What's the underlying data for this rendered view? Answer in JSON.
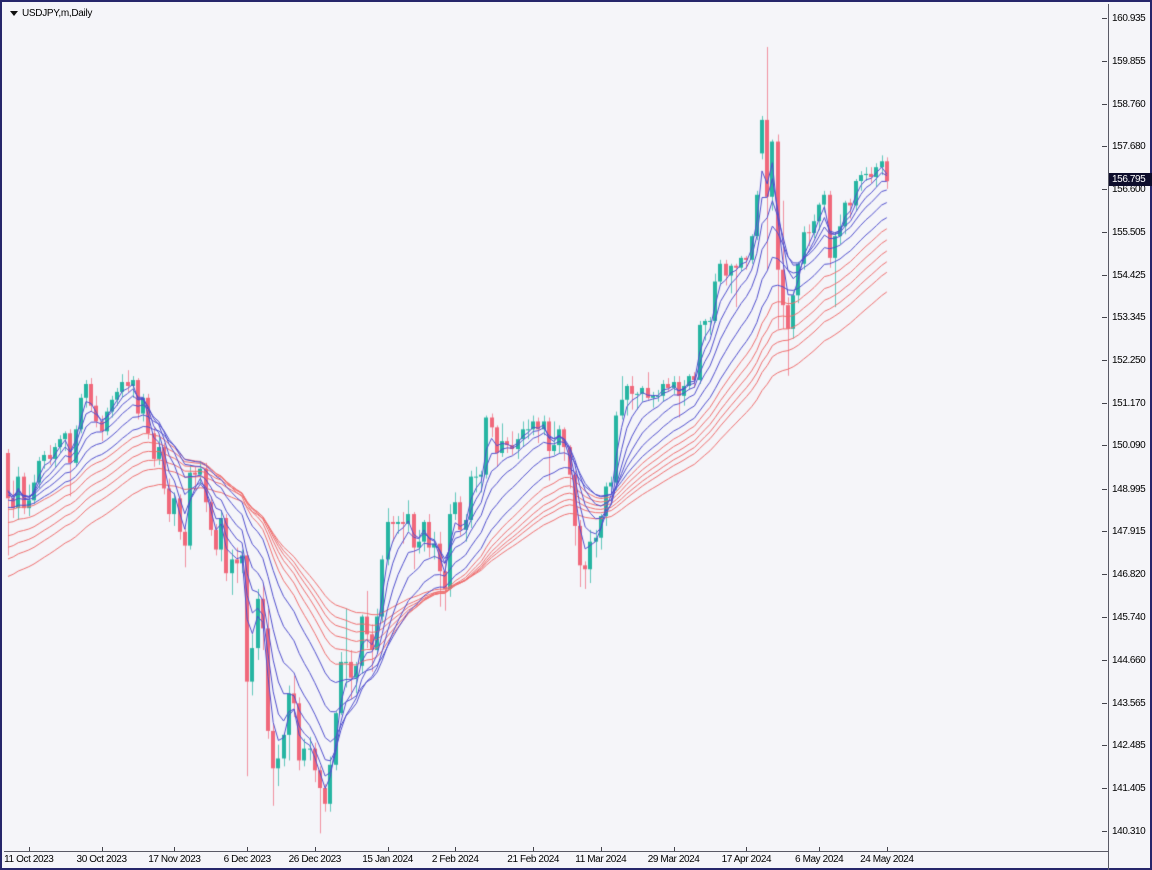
{
  "window": {
    "symbol_label": "USDJPY,m,Daily"
  },
  "price_axis": {
    "labels": [
      "160.935",
      "159.855",
      "158.760",
      "157.680",
      "156.600",
      "155.505",
      "154.425",
      "153.345",
      "152.250",
      "151.170",
      "150.090",
      "148.995",
      "147.915",
      "146.820",
      "145.740",
      "144.660",
      "143.565",
      "142.485",
      "141.405",
      "140.310"
    ],
    "current_price": "156.795"
  },
  "time_axis": {
    "labels": [
      {
        "text": "11 Oct 2023",
        "bar": 4
      },
      {
        "text": "30 Oct 2023",
        "bar": 18
      },
      {
        "text": "17 Nov 2023",
        "bar": 32
      },
      {
        "text": "6 Dec 2023",
        "bar": 46
      },
      {
        "text": "26 Dec 2023",
        "bar": 59
      },
      {
        "text": "15 Jan 2024",
        "bar": 73
      },
      {
        "text": "2 Feb 2024",
        "bar": 86
      },
      {
        "text": "21 Feb 2024",
        "bar": 101
      },
      {
        "text": "11 Mar 2024",
        "bar": 114
      },
      {
        "text": "29 Mar 2024",
        "bar": 128
      },
      {
        "text": "17 Apr 2024",
        "bar": 142
      },
      {
        "text": "6 May 2024",
        "bar": 156
      },
      {
        "text": "24 May 2024",
        "bar": 169
      }
    ]
  },
  "chart_data": {
    "type": "candlestick",
    "title": "USDJPY,m,Daily",
    "ylim": [
      139.8,
      161.3
    ],
    "colors": {
      "up": "#26b5a2",
      "down": "#f0687b",
      "gmma_short": "#4f4ecd",
      "gmma_long": "#ee6e6e",
      "background": "#f5f5f9"
    },
    "candles": [
      [
        149.9,
        150.0,
        147.3,
        148.75
      ],
      [
        148.75,
        149.2,
        148.25,
        148.5
      ],
      [
        148.5,
        149.55,
        148.2,
        149.3
      ],
      [
        149.3,
        149.4,
        148.35,
        148.5
      ],
      [
        148.5,
        149.1,
        148.3,
        148.7
      ],
      [
        148.7,
        149.35,
        148.6,
        149.15
      ],
      [
        149.15,
        149.8,
        149.0,
        149.7
      ],
      [
        149.7,
        149.95,
        149.5,
        149.85
      ],
      [
        149.85,
        150.1,
        149.6,
        149.75
      ],
      [
        149.75,
        150.15,
        149.55,
        150.05
      ],
      [
        150.05,
        150.35,
        149.9,
        150.25
      ],
      [
        150.25,
        150.45,
        149.95,
        150.4
      ],
      [
        150.4,
        150.5,
        148.8,
        149.65
      ],
      [
        149.65,
        150.6,
        149.55,
        150.5
      ],
      [
        150.5,
        151.4,
        150.4,
        151.3
      ],
      [
        151.3,
        151.75,
        151.05,
        151.65
      ],
      [
        151.65,
        151.8,
        150.95,
        151.1
      ],
      [
        151.1,
        151.35,
        150.55,
        150.7
      ],
      [
        150.7,
        150.85,
        150.2,
        150.45
      ],
      [
        150.45,
        151.05,
        150.35,
        150.95
      ],
      [
        150.95,
        151.35,
        150.8,
        151.25
      ],
      [
        151.25,
        151.55,
        151.1,
        151.45
      ],
      [
        151.45,
        151.9,
        151.3,
        151.7
      ],
      [
        151.7,
        152.0,
        151.45,
        151.6
      ],
      [
        151.6,
        151.85,
        151.3,
        151.75
      ],
      [
        151.75,
        151.8,
        150.75,
        150.9
      ],
      [
        150.9,
        151.4,
        150.7,
        151.3
      ],
      [
        151.3,
        151.4,
        150.25,
        150.4
      ],
      [
        150.4,
        150.55,
        149.55,
        149.75
      ],
      [
        149.75,
        150.3,
        149.6,
        150.05
      ],
      [
        150.05,
        150.15,
        148.85,
        149.0
      ],
      [
        149.0,
        149.25,
        148.15,
        148.35
      ],
      [
        148.35,
        148.9,
        148.05,
        148.75
      ],
      [
        148.75,
        148.85,
        147.7,
        147.9
      ],
      [
        147.9,
        148.0,
        147.0,
        147.55
      ],
      [
        147.55,
        149.6,
        147.45,
        149.4
      ],
      [
        149.4,
        149.55,
        148.95,
        149.35
      ],
      [
        149.35,
        149.7,
        149.1,
        149.5
      ],
      [
        149.5,
        149.65,
        148.4,
        148.65
      ],
      [
        148.65,
        148.8,
        147.8,
        147.95
      ],
      [
        147.95,
        148.1,
        147.3,
        147.45
      ],
      [
        147.45,
        148.45,
        147.15,
        148.25
      ],
      [
        148.25,
        148.35,
        146.65,
        146.85
      ],
      [
        146.85,
        147.45,
        146.3,
        147.2
      ],
      [
        147.2,
        147.5,
        146.6,
        147.1
      ],
      [
        147.1,
        147.45,
        146.85,
        147.3
      ],
      [
        147.3,
        147.4,
        141.7,
        144.1
      ],
      [
        144.1,
        145.3,
        143.75,
        144.95
      ],
      [
        144.95,
        146.45,
        144.65,
        146.2
      ],
      [
        146.2,
        146.55,
        144.9,
        145.45
      ],
      [
        145.45,
        145.95,
        142.65,
        142.85
      ],
      [
        142.85,
        143.05,
        140.95,
        141.9
      ],
      [
        141.9,
        142.5,
        141.45,
        142.15
      ],
      [
        142.15,
        142.8,
        141.95,
        142.75
      ],
      [
        142.75,
        144.0,
        142.1,
        143.8
      ],
      [
        143.8,
        144.25,
        143.2,
        143.55
      ],
      [
        143.55,
        143.7,
        141.85,
        142.1
      ],
      [
        142.1,
        142.65,
        141.95,
        142.4
      ],
      [
        142.4,
        142.7,
        142.1,
        142.4
      ],
      [
        142.4,
        142.55,
        141.55,
        141.85
      ],
      [
        141.85,
        141.95,
        140.25,
        141.4
      ],
      [
        141.4,
        141.5,
        140.8,
        141.0
      ],
      [
        141.0,
        142.2,
        140.8,
        141.99
      ],
      [
        141.99,
        143.35,
        141.85,
        143.3
      ],
      [
        143.3,
        144.85,
        143.25,
        144.6
      ],
      [
        144.6,
        145.95,
        143.95,
        144.6
      ],
      [
        144.6,
        144.9,
        143.65,
        144.2
      ],
      [
        144.2,
        144.6,
        143.8,
        144.5
      ],
      [
        144.5,
        145.8,
        144.3,
        145.75
      ],
      [
        145.75,
        146.4,
        144.95,
        145.3
      ],
      [
        145.3,
        145.55,
        144.35,
        144.9
      ],
      [
        144.9,
        145.95,
        144.8,
        145.75
      ],
      [
        145.75,
        147.3,
        145.6,
        147.2
      ],
      [
        147.2,
        148.5,
        147.05,
        148.15
      ],
      [
        148.15,
        148.3,
        147.65,
        148.1
      ],
      [
        148.1,
        148.3,
        147.85,
        148.15
      ],
      [
        148.15,
        148.4,
        147.6,
        148.1
      ],
      [
        148.1,
        148.7,
        147.9,
        148.35
      ],
      [
        148.35,
        148.4,
        146.95,
        147.5
      ],
      [
        147.5,
        147.95,
        147.35,
        147.65
      ],
      [
        147.65,
        148.2,
        147.4,
        148.15
      ],
      [
        148.15,
        148.35,
        147.25,
        147.5
      ],
      [
        147.5,
        147.9,
        147.2,
        147.6
      ],
      [
        147.6,
        147.9,
        146.0,
        146.9
      ],
      [
        146.9,
        147.1,
        145.9,
        146.45
      ],
      [
        146.45,
        148.6,
        146.25,
        148.35
      ],
      [
        148.35,
        148.9,
        148.2,
        148.65
      ],
      [
        148.65,
        148.8,
        147.8,
        147.95
      ],
      [
        147.95,
        148.35,
        147.65,
        148.2
      ],
      [
        148.2,
        149.45,
        148.0,
        149.3
      ],
      [
        149.3,
        149.55,
        148.9,
        149.3
      ],
      [
        149.3,
        149.45,
        148.9,
        149.35
      ],
      [
        149.35,
        150.85,
        149.25,
        150.8
      ],
      [
        150.8,
        150.9,
        150.3,
        150.55
      ],
      [
        150.55,
        150.6,
        149.55,
        149.9
      ],
      [
        149.9,
        150.65,
        149.8,
        150.2
      ],
      [
        150.2,
        150.3,
        149.9,
        150.1
      ],
      [
        150.1,
        150.45,
        149.85,
        150.0
      ],
      [
        150.0,
        150.4,
        149.75,
        150.25
      ],
      [
        150.25,
        150.7,
        150.05,
        150.5
      ],
      [
        150.5,
        150.75,
        150.25,
        150.5
      ],
      [
        150.5,
        150.85,
        150.35,
        150.7
      ],
      [
        150.7,
        150.8,
        150.15,
        150.5
      ],
      [
        150.5,
        150.85,
        150.35,
        150.7
      ],
      [
        150.7,
        150.8,
        149.2,
        149.95
      ],
      [
        149.95,
        150.7,
        149.85,
        150.1
      ],
      [
        150.1,
        150.6,
        149.9,
        150.5
      ],
      [
        150.5,
        150.55,
        149.7,
        150.05
      ],
      [
        150.05,
        150.1,
        149.0,
        149.35
      ],
      [
        149.35,
        149.45,
        147.55,
        148.05
      ],
      [
        148.05,
        148.2,
        146.5,
        147.05
      ],
      [
        147.05,
        147.15,
        146.45,
        146.95
      ],
      [
        146.95,
        147.95,
        146.6,
        147.65
      ],
      [
        147.65,
        147.95,
        147.25,
        147.75
      ],
      [
        147.75,
        148.35,
        147.45,
        148.3
      ],
      [
        148.3,
        149.15,
        148.05,
        149.05
      ],
      [
        149.05,
        149.3,
        148.9,
        149.15
      ],
      [
        149.15,
        150.95,
        148.95,
        150.85
      ],
      [
        150.85,
        151.85,
        150.75,
        151.25
      ],
      [
        151.25,
        151.65,
        150.85,
        151.6
      ],
      [
        151.6,
        151.85,
        151.0,
        151.4
      ],
      [
        151.4,
        151.45,
        151.0,
        151.4
      ],
      [
        151.4,
        151.6,
        151.2,
        151.55
      ],
      [
        151.55,
        151.95,
        151.25,
        151.3
      ],
      [
        151.3,
        151.45,
        151.05,
        151.35
      ],
      [
        151.35,
        151.5,
        151.2,
        151.35
      ],
      [
        151.35,
        151.75,
        151.2,
        151.65
      ],
      [
        151.65,
        151.8,
        151.45,
        151.55
      ],
      [
        151.55,
        151.85,
        151.4,
        151.7
      ],
      [
        151.7,
        151.85,
        150.8,
        151.35
      ],
      [
        151.35,
        151.75,
        151.1,
        151.6
      ],
      [
        151.6,
        151.9,
        151.5,
        151.85
      ],
      [
        151.85,
        151.95,
        151.55,
        151.75
      ],
      [
        151.75,
        153.25,
        151.65,
        153.15
      ],
      [
        153.15,
        153.3,
        152.75,
        153.25
      ],
      [
        153.25,
        153.35,
        152.9,
        153.25
      ],
      [
        153.25,
        154.45,
        153.2,
        154.25
      ],
      [
        154.25,
        154.8,
        154.15,
        154.7
      ],
      [
        154.7,
        154.8,
        154.15,
        154.4
      ],
      [
        154.4,
        154.7,
        153.95,
        154.65
      ],
      [
        154.65,
        154.7,
        153.6,
        154.6
      ],
      [
        154.6,
        154.9,
        154.5,
        154.85
      ],
      [
        154.85,
        154.9,
        154.55,
        154.8
      ],
      [
        154.8,
        155.45,
        154.7,
        155.4
      ],
      [
        155.4,
        156.55,
        155.3,
        156.45
      ],
      [
        157.5,
        158.45,
        157.35,
        158.35
      ],
      [
        158.35,
        160.2,
        154.55,
        156.4
      ],
      [
        156.4,
        157.85,
        156.05,
        157.8
      ],
      [
        157.8,
        157.98,
        153.05,
        154.55
      ],
      [
        154.55,
        156.3,
        153.05,
        153.65
      ],
      [
        153.65,
        153.85,
        151.86,
        153.05
      ],
      [
        153.05,
        154.0,
        152.8,
        153.9
      ],
      [
        153.9,
        154.75,
        153.7,
        154.7
      ],
      [
        154.7,
        155.65,
        154.55,
        155.5
      ],
      [
        155.5,
        155.7,
        155.15,
        155.48
      ],
      [
        155.48,
        155.95,
        155.35,
        155.78
      ],
      [
        155.78,
        156.25,
        155.55,
        156.2
      ],
      [
        156.2,
        156.55,
        156.0,
        156.45
      ],
      [
        156.45,
        156.55,
        154.6,
        154.85
      ],
      [
        154.85,
        155.5,
        153.6,
        155.4
      ],
      [
        155.4,
        155.95,
        155.2,
        155.65
      ],
      [
        155.65,
        156.3,
        155.45,
        156.25
      ],
      [
        156.25,
        156.35,
        155.85,
        156.18
      ],
      [
        156.18,
        156.85,
        156.05,
        156.8
      ],
      [
        156.8,
        157.05,
        156.55,
        156.95
      ],
      [
        156.95,
        157.15,
        156.8,
        156.98
      ],
      [
        156.98,
        157.15,
        156.75,
        156.9
      ],
      [
        156.9,
        157.25,
        156.65,
        157.15
      ],
      [
        157.15,
        157.45,
        156.95,
        157.3
      ],
      [
        157.3,
        157.4,
        156.6,
        156.795
      ]
    ],
    "indicators": {
      "gmma_short": {
        "type": "ema",
        "periods": [
          3,
          5,
          8,
          12,
          18,
          25
        ],
        "seeds": [
          149.1,
          149.05,
          148.95,
          148.85,
          148.7,
          148.5
        ]
      },
      "gmma_long": {
        "type": "ema",
        "periods": [
          30,
          35,
          40,
          45,
          50,
          60
        ],
        "seeds": [
          148.45,
          148.1,
          147.75,
          147.45,
          147.15,
          146.7
        ]
      }
    }
  }
}
